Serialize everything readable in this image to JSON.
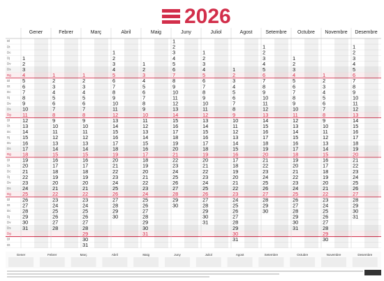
{
  "title": 2026,
  "weekdays": [
    "Dl",
    "Dt",
    "Dc",
    "Dj",
    "Dv",
    "Ds",
    "Dg"
  ],
  "months": [
    {
      "name": "Gener",
      "days": [
        1,
        2,
        3,
        4,
        5,
        6,
        7,
        8,
        9,
        10,
        11,
        12,
        13,
        14,
        15,
        16,
        17,
        18,
        19,
        20,
        21,
        22,
        23,
        24,
        25,
        26,
        27,
        28,
        29,
        30,
        31
      ]
    },
    {
      "name": "Febrer",
      "days": [
        1,
        2,
        3,
        4,
        5,
        6,
        7,
        8,
        9,
        10,
        11,
        12,
        13,
        14,
        15,
        16,
        17,
        18,
        19,
        20,
        21,
        22,
        23,
        24,
        25,
        26,
        27,
        28
      ]
    },
    {
      "name": "Març",
      "days": [
        1,
        2,
        3,
        4,
        5,
        6,
        7,
        8,
        9,
        10,
        11,
        12,
        13,
        14,
        15,
        16,
        17,
        18,
        19,
        20,
        21,
        22,
        23,
        24,
        25,
        26,
        27,
        28,
        29,
        30,
        31
      ]
    },
    {
      "name": "Abril",
      "days": [
        1,
        2,
        3,
        4,
        5,
        6,
        7,
        8,
        9,
        10,
        11,
        12,
        13,
        14,
        15,
        16,
        17,
        18,
        19,
        20,
        21,
        22,
        23,
        24,
        25,
        26,
        27,
        28,
        29,
        30
      ]
    },
    {
      "name": "Maig",
      "days": [
        1,
        2,
        3,
        4,
        5,
        6,
        7,
        8,
        9,
        10,
        11,
        12,
        13,
        14,
        15,
        16,
        17,
        18,
        19,
        20,
        21,
        22,
        23,
        24,
        25,
        26,
        27,
        28,
        29,
        30,
        31
      ]
    },
    {
      "name": "Juny",
      "days": [
        1,
        2,
        3,
        4,
        5,
        6,
        7,
        8,
        9,
        10,
        11,
        12,
        13,
        14,
        15,
        16,
        17,
        18,
        19,
        20,
        21,
        22,
        23,
        24,
        25,
        26,
        27,
        28,
        29,
        30
      ]
    },
    {
      "name": "Juliol",
      "days": [
        1,
        2,
        3,
        4,
        5,
        6,
        7,
        8,
        9,
        10,
        11,
        12,
        13,
        14,
        15,
        16,
        17,
        18,
        19,
        20,
        21,
        22,
        23,
        24,
        25,
        26,
        27,
        28,
        29,
        30,
        31
      ]
    },
    {
      "name": "Agost",
      "days": [
        1,
        2,
        3,
        4,
        5,
        6,
        7,
        8,
        9,
        10,
        11,
        12,
        13,
        14,
        15,
        16,
        17,
        18,
        19,
        20,
        21,
        22,
        23,
        24,
        25,
        26,
        27,
        28,
        29,
        30,
        31
      ]
    },
    {
      "name": "Setembre",
      "days": [
        1,
        2,
        3,
        4,
        5,
        6,
        7,
        8,
        9,
        10,
        11,
        12,
        13,
        14,
        15,
        16,
        17,
        18,
        19,
        20,
        21,
        22,
        23,
        24,
        25,
        26,
        27,
        28,
        29,
        30
      ]
    },
    {
      "name": "Octubre",
      "days": [
        1,
        2,
        3,
        4,
        5,
        6,
        7,
        8,
        9,
        10,
        11,
        12,
        13,
        14,
        15,
        16,
        17,
        18,
        19,
        20,
        21,
        22,
        23,
        24,
        25,
        26,
        27,
        28,
        29,
        30,
        31
      ]
    },
    {
      "name": "Novembre",
      "days": [
        1,
        2,
        3,
        4,
        5,
        6,
        7,
        8,
        9,
        10,
        11,
        12,
        13,
        14,
        15,
        16,
        17,
        18,
        19,
        20,
        21,
        22,
        23,
        24,
        25,
        26,
        27,
        28,
        29,
        30
      ]
    },
    {
      "name": "Desembre",
      "days": [
        1,
        2,
        3,
        4,
        5,
        6,
        7,
        8,
        9,
        10,
        11,
        12,
        13,
        14,
        15,
        16,
        17,
        18,
        19,
        20,
        21,
        22,
        23,
        24,
        25,
        26,
        27,
        28,
        29,
        30,
        31
      ]
    }
  ]
}
